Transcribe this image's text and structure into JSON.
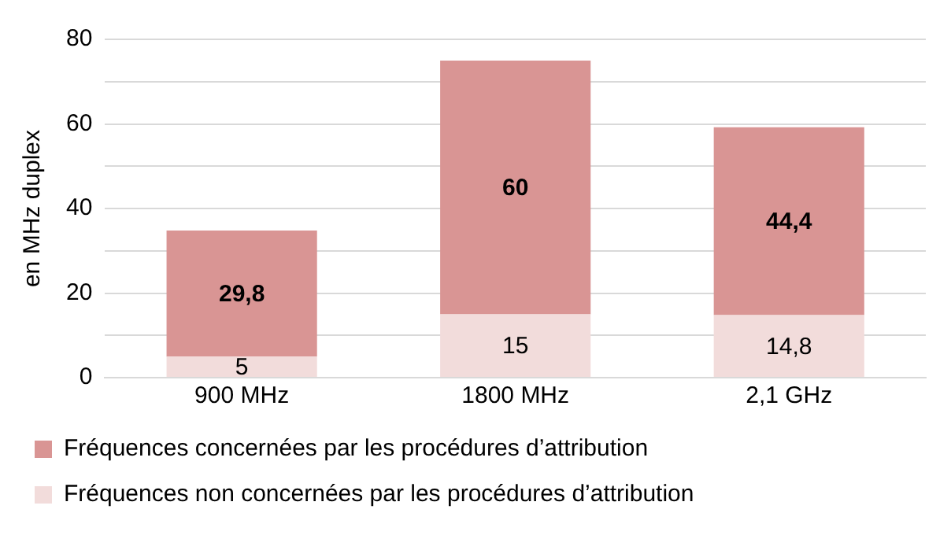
{
  "chart_data": {
    "type": "bar",
    "ylabel": "en MHz duplex",
    "categories": [
      "900 MHz",
      "1800 MHz",
      "2,1 GHz"
    ],
    "stacked": true,
    "series": [
      {
        "name": "Fréquences non concernées par les procédures d’attribution",
        "color": "#f2dcdb",
        "values": [
          5,
          15,
          14.8
        ],
        "value_labels": [
          "5",
          "15",
          "14,8"
        ]
      },
      {
        "name": "Fréquences concernées par les procédures d’attribution",
        "color": "#d99594",
        "values": [
          29.8,
          60,
          44.4
        ],
        "value_labels": [
          "29,8",
          "60",
          "44,4"
        ]
      }
    ],
    "ylim": [
      0,
      80
    ],
    "yticks": [
      0,
      {
        "value": 10,
        "label": null
      },
      20,
      {
        "value": 30,
        "label": null
      },
      40,
      {
        "value": 50,
        "label": null
      },
      60,
      {
        "value": 70,
        "label": null
      },
      80
    ],
    "grid": "y",
    "legend": "bottom"
  }
}
